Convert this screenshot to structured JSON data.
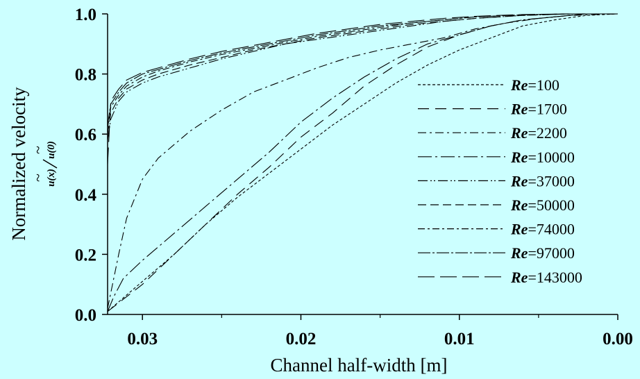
{
  "colors": {
    "background": "#ccffff",
    "ink": "#000000"
  },
  "chart_data": {
    "type": "line",
    "xlabel": "Channel half-width [m]",
    "ylabel": "Normalized velocity",
    "ylabel_formula": {
      "num": "u(x)",
      "den": "u(0)",
      "tilde": "~"
    },
    "x_reversed": true,
    "xlim": [
      0.0,
      0.0322
    ],
    "ylim": [
      0.0,
      1.0
    ],
    "x_ticks": [
      0.03,
      0.02,
      0.01,
      0.0
    ],
    "x_tick_labels": [
      "0.03",
      "0.02",
      "0.01",
      "0.00"
    ],
    "y_ticks": [
      0.0,
      0.2,
      0.4,
      0.6,
      0.8,
      1.0
    ],
    "y_tick_labels": [
      "0.0",
      "0.2",
      "0.4",
      "0.6",
      "0.8",
      "1.0"
    ],
    "grid": false,
    "legend_position": "right",
    "series": [
      {
        "name": "Re=100",
        "prefix": "Re",
        "value": "=100",
        "dash": "4,3",
        "x": [
          0.0322,
          0.03,
          0.028,
          0.026,
          0.024,
          0.022,
          0.02,
          0.018,
          0.016,
          0.014,
          0.012,
          0.01,
          0.008,
          0.006,
          0.004,
          0.002,
          0.0
        ],
        "y": [
          0.01,
          0.11,
          0.2,
          0.3,
          0.39,
          0.47,
          0.55,
          0.63,
          0.7,
          0.77,
          0.83,
          0.88,
          0.92,
          0.96,
          0.98,
          0.995,
          1.0
        ]
      },
      {
        "name": "Re=1700",
        "prefix": "Re",
        "value": "=1700",
        "dash": "16,9",
        "x": [
          0.0322,
          0.03,
          0.028,
          0.026,
          0.024,
          0.022,
          0.02,
          0.018,
          0.016,
          0.014,
          0.012,
          0.01,
          0.008,
          0.006,
          0.004,
          0.002,
          0.0
        ],
        "y": [
          0.01,
          0.1,
          0.2,
          0.3,
          0.4,
          0.49,
          0.59,
          0.67,
          0.76,
          0.83,
          0.89,
          0.93,
          0.96,
          0.98,
          0.99,
          1.0,
          1.0
        ]
      },
      {
        "name": "Re=2200",
        "prefix": "Re",
        "value": "=2200",
        "dash": "12,5,3,5",
        "x": [
          0.0322,
          0.0315,
          0.031,
          0.03,
          0.029,
          0.027,
          0.025,
          0.023,
          0.021,
          0.019,
          0.017,
          0.015,
          0.013,
          0.011,
          0.009,
          0.007,
          0.005,
          0.003,
          0.0
        ],
        "y": [
          0.02,
          0.2,
          0.32,
          0.45,
          0.52,
          0.61,
          0.68,
          0.74,
          0.78,
          0.82,
          0.855,
          0.88,
          0.9,
          0.92,
          0.95,
          0.97,
          0.985,
          0.995,
          1.0
        ]
      },
      {
        "name": "Re=10000",
        "prefix": "Re",
        "value": "=10000",
        "dash": "20,5,3,5",
        "x": [
          0.0322,
          0.0318,
          0.0312,
          0.03,
          0.028,
          0.026,
          0.024,
          0.022,
          0.02,
          0.018,
          0.016,
          0.014,
          0.012,
          0.01,
          0.008,
          0.006,
          0.004,
          0.002,
          0.0
        ],
        "y": [
          0.01,
          0.06,
          0.12,
          0.18,
          0.27,
          0.36,
          0.45,
          0.54,
          0.64,
          0.72,
          0.79,
          0.85,
          0.9,
          0.93,
          0.96,
          0.98,
          0.99,
          1.0,
          1.0
        ]
      },
      {
        "name": "Re=37000",
        "prefix": "Re",
        "value": "=37000",
        "dash": "14,4,2,3,2,4",
        "x": [
          0.0322,
          0.032,
          0.0315,
          0.031,
          0.03,
          0.029,
          0.027,
          0.025,
          0.023,
          0.021,
          0.019,
          0.017,
          0.015,
          0.013,
          0.011,
          0.009,
          0.006,
          0.003,
          0.0
        ],
        "y": [
          0.58,
          0.65,
          0.71,
          0.74,
          0.77,
          0.79,
          0.82,
          0.85,
          0.875,
          0.9,
          0.915,
          0.93,
          0.945,
          0.96,
          0.975,
          0.985,
          0.995,
          1.0,
          1.0
        ]
      },
      {
        "name": "Re=50000",
        "prefix": "Re",
        "value": "=50000",
        "dash": "12,6",
        "x": [
          0.0322,
          0.032,
          0.0315,
          0.031,
          0.03,
          0.029,
          0.027,
          0.025,
          0.023,
          0.021,
          0.019,
          0.017,
          0.015,
          0.013,
          0.011,
          0.009,
          0.006,
          0.003,
          0.0
        ],
        "y": [
          0.6,
          0.67,
          0.72,
          0.75,
          0.78,
          0.8,
          0.83,
          0.855,
          0.88,
          0.9,
          0.92,
          0.935,
          0.95,
          0.965,
          0.975,
          0.985,
          0.995,
          1.0,
          1.0
        ]
      },
      {
        "name": "Re=74000",
        "prefix": "Re",
        "value": "=74000",
        "dash": "10,4,3,4",
        "x": [
          0.0322,
          0.032,
          0.0315,
          0.031,
          0.03,
          0.029,
          0.027,
          0.025,
          0.023,
          0.021,
          0.019,
          0.017,
          0.015,
          0.013,
          0.011,
          0.009,
          0.006,
          0.003,
          0.0
        ],
        "y": [
          0.62,
          0.69,
          0.73,
          0.76,
          0.79,
          0.81,
          0.84,
          0.865,
          0.885,
          0.905,
          0.925,
          0.94,
          0.955,
          0.97,
          0.98,
          0.99,
          0.997,
          1.0,
          1.0
        ]
      },
      {
        "name": "Re=97000",
        "prefix": "Re",
        "value": "=97000",
        "dash": "18,3,3,3",
        "x": [
          0.0322,
          0.032,
          0.0315,
          0.031,
          0.03,
          0.029,
          0.027,
          0.025,
          0.023,
          0.021,
          0.019,
          0.017,
          0.015,
          0.013,
          0.011,
          0.009,
          0.006,
          0.003,
          0.0
        ],
        "y": [
          0.63,
          0.7,
          0.74,
          0.77,
          0.8,
          0.815,
          0.845,
          0.87,
          0.89,
          0.91,
          0.93,
          0.945,
          0.96,
          0.97,
          0.98,
          0.99,
          0.997,
          1.0,
          1.0
        ]
      },
      {
        "name": "Re=143000",
        "prefix": "Re",
        "value": "=143000",
        "dash": "24,8",
        "x": [
          0.0322,
          0.032,
          0.0315,
          0.031,
          0.03,
          0.029,
          0.027,
          0.025,
          0.023,
          0.021,
          0.019,
          0.017,
          0.015,
          0.013,
          0.011,
          0.009,
          0.006,
          0.003,
          0.0
        ],
        "y": [
          0.5,
          0.71,
          0.75,
          0.78,
          0.805,
          0.82,
          0.85,
          0.875,
          0.895,
          0.915,
          0.935,
          0.95,
          0.965,
          0.975,
          0.985,
          0.992,
          0.998,
          1.0,
          1.0
        ]
      }
    ]
  }
}
